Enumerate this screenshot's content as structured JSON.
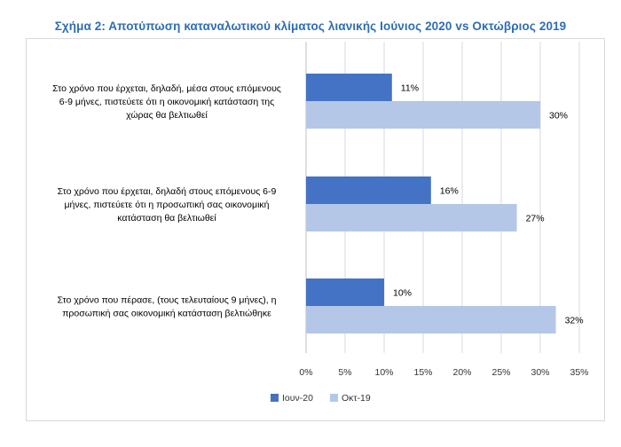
{
  "title": "Σχήμα 2: Αποτύπωση καταναλωτικού κλίματος λιανικής Ιούνιος 2020 vs Οκτώβριος 2019",
  "colors": {
    "series_1": "#4472c4",
    "series_2": "#b4c7e7",
    "title": "#2e6db4"
  },
  "chart_data": {
    "type": "bar",
    "orientation": "horizontal",
    "title": "Σχήμα 2: Αποτύπωση καταναλωτικού κλίματος λιανικής Ιούνιος 2020 vs Οκτώβριος 2019",
    "categories": [
      [
        "Στο χρόνο που έρχεται, δηλαδή, μέσα στους επόμενους",
        "6-9 μήνες, πιστεύετε ότι η οικονομική κατάσταση της",
        "χώρας θα βελτιωθεί"
      ],
      [
        "Στο χρόνο που έρχεται, δηλαδή στους επόμενους 6-9",
        "μήνες, πιστεύετε ότι η προσωπική σας οικονομική",
        "κατάσταση θα βελτιωθεί"
      ],
      [
        "Στο χρόνο που πέρασε, (τους τελευταίους 9 μήνες), η",
        "προσωπική σας οικονομική κατάσταση βελτιώθηκε"
      ]
    ],
    "series": [
      {
        "name": "Ιουν-20",
        "values": [
          11,
          16,
          10
        ],
        "labels": [
          "11%",
          "16%",
          "10%"
        ]
      },
      {
        "name": "Οκτ-19",
        "values": [
          30,
          27,
          32
        ],
        "labels": [
          "30%",
          "27%",
          "32%"
        ]
      }
    ],
    "xlim": [
      0,
      35
    ],
    "xticks": [
      "0%",
      "5%",
      "10%",
      "15%",
      "20%",
      "25%",
      "30%",
      "35%"
    ],
    "grid": "vertical",
    "legend": "bottom"
  }
}
